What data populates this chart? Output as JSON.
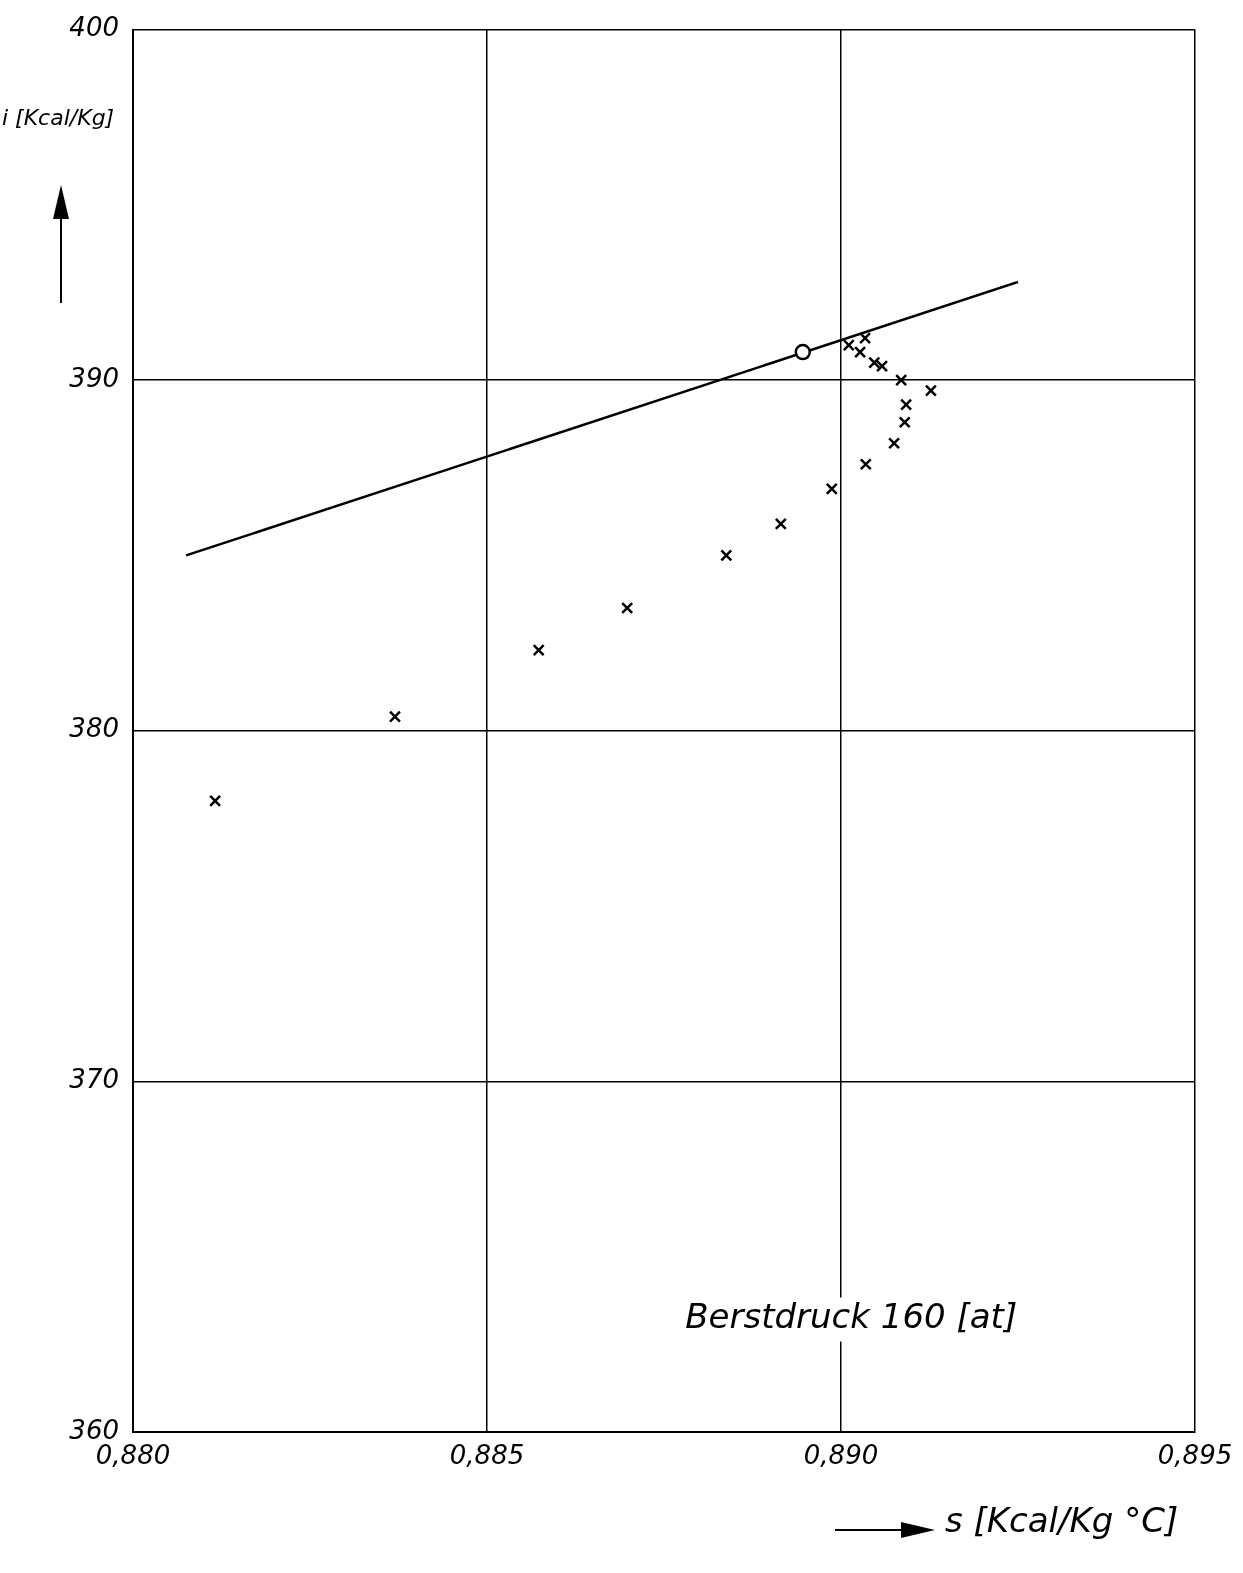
{
  "chart_data": {
    "type": "scatter",
    "xlabel": "s [Kcal/Kg °C]",
    "ylabel": "i [Kcal/Kg]",
    "annotations": [
      "Berstdruck 160 [at]"
    ],
    "xlim": [
      0.88,
      0.895
    ],
    "xticks": [
      {
        "value": 0.88,
        "label": "0,880"
      },
      {
        "value": 0.885,
        "label": "0,885"
      },
      {
        "value": 0.89,
        "label": "0,890"
      },
      {
        "value": 0.895,
        "label": "0,895"
      }
    ],
    "ylim": [
      360,
      400
    ],
    "yticks": [
      360,
      370,
      380,
      390,
      400
    ],
    "grid": true,
    "legend": false,
    "series": [
      {
        "marker": "cross",
        "color": "#000000",
        "x": [
          0.88116,
          0.8837,
          0.88573,
          0.88698,
          0.88838,
          0.88915,
          0.88987,
          0.89035,
          0.89075,
          0.8909,
          0.89092,
          0.89127,
          0.89085,
          0.89058,
          0.89047,
          0.89027,
          0.89011,
          0.89034
        ],
        "values": [
          378.0,
          380.4,
          382.3,
          383.5,
          385.0,
          385.9,
          386.9,
          387.6,
          388.2,
          388.8,
          389.3,
          389.7,
          390.0,
          390.4,
          390.5,
          390.8,
          391.0,
          391.2
        ]
      },
      {
        "marker": "circle",
        "color": "#000000",
        "x": [
          0.88946
        ],
        "values": [
          390.8
        ]
      },
      {
        "type": "line",
        "marker": "none",
        "color": "#000000",
        "x": [
          0.88075,
          0.8925
        ],
        "values": [
          385.0,
          392.8
        ]
      }
    ]
  }
}
